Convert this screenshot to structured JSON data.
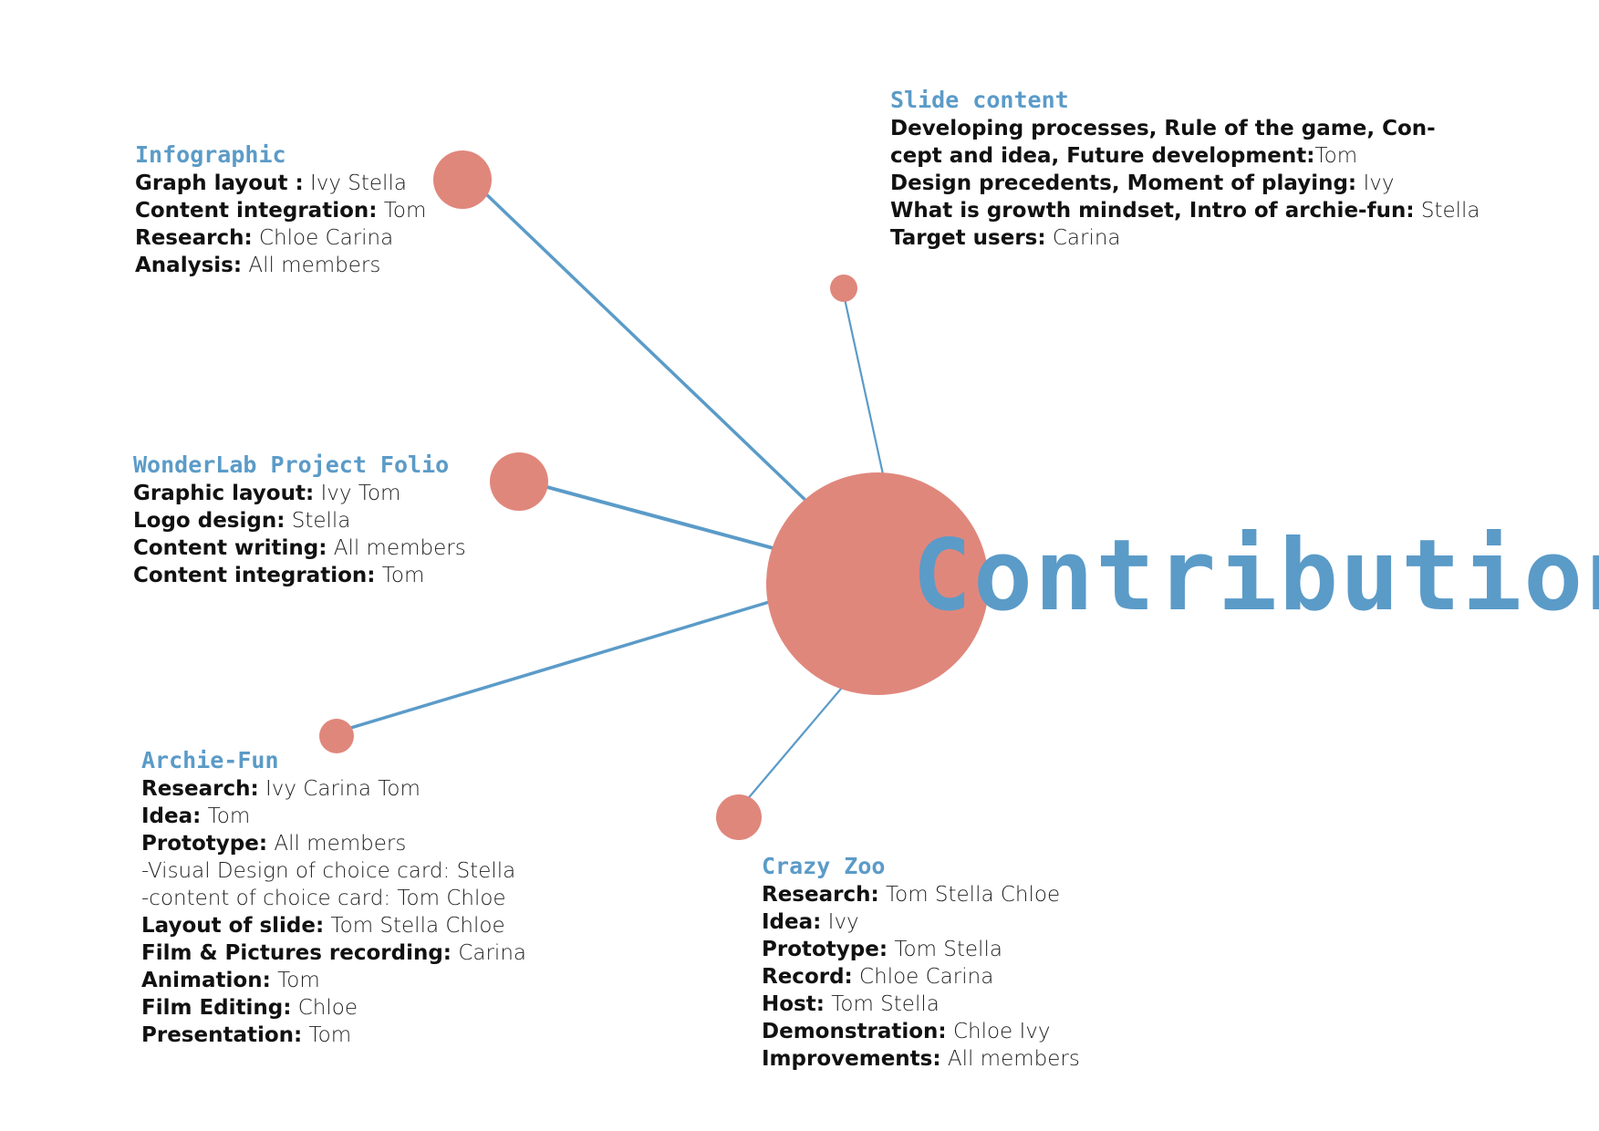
{
  "title": "Contribution",
  "colors": {
    "accent_blue": "#5B9BC8",
    "node_salmon": "#E0877C",
    "text": "#1a1a1a"
  },
  "sections": {
    "infographic": {
      "heading": "Infographic",
      "rows": [
        {
          "k": "Graph layout :",
          "v": " Ivy Stella"
        },
        {
          "k": "Content integration:",
          "v": " Tom"
        },
        {
          "k": "Research:",
          "v": " Chloe Carina"
        },
        {
          "k": "Analysis:",
          "v": " All members"
        }
      ]
    },
    "slide_content": {
      "heading": "Slide content",
      "rows": [
        {
          "k": "Developing processes, Rule of the game, Con-",
          "v": ""
        },
        {
          "k": "cept and idea, Future development:",
          "v": "Tom"
        },
        {
          "k": "Design precedents, Moment of playing:",
          "v": "  Ivy"
        },
        {
          "k": "What is growth mindset, Intro of archie-fun:",
          "v": " Stella"
        },
        {
          "k": "Target users:",
          "v": " Carina"
        }
      ]
    },
    "wonderlab": {
      "heading": "WonderLab Project Folio",
      "rows": [
        {
          "k": "Graphic layout:",
          "v": " Ivy Tom"
        },
        {
          "k": "Logo design:",
          "v": " Stella"
        },
        {
          "k": "Content writing:",
          "v": " All members"
        },
        {
          "k": "Content integration:",
          "v": " Tom"
        }
      ]
    },
    "archie_fun": {
      "heading": "Archie-Fun",
      "rows": [
        {
          "k": "Research:",
          "v": " Ivy Carina Tom"
        },
        {
          "k": "Idea:",
          "v": " Tom"
        },
        {
          "k": "Prototype:",
          "v": " All members"
        },
        {
          "k": "",
          "v": "-Visual Design of choice card: Stella"
        },
        {
          "k": "",
          "v": "-content of choice card: Tom Chloe"
        },
        {
          "k": "Layout of slide:",
          "v": " Tom Stella Chloe"
        },
        {
          "k": "Film & Pictures recording:",
          "v": " Carina"
        },
        {
          "k": "Animation:",
          "v": " Tom"
        },
        {
          "k": "Film Editing:",
          "v": " Chloe"
        },
        {
          "k": "Presentation:",
          "v": " Tom"
        }
      ]
    },
    "crazy_zoo": {
      "heading": "Crazy Zoo",
      "rows": [
        {
          "k": "Research:",
          "v": " Tom Stella Chloe"
        },
        {
          "k": "Idea:",
          "v": " Ivy"
        },
        {
          "k": "Prototype:",
          "v": " Tom Stella"
        },
        {
          "k": "Record:",
          "v": " Chloe Carina"
        },
        {
          "k": "Host:",
          "v": " Tom Stella"
        },
        {
          "k": "Demonstration:",
          "v": " Chloe Ivy"
        },
        {
          "k": "Improvements:",
          "v": " All members"
        }
      ]
    }
  }
}
